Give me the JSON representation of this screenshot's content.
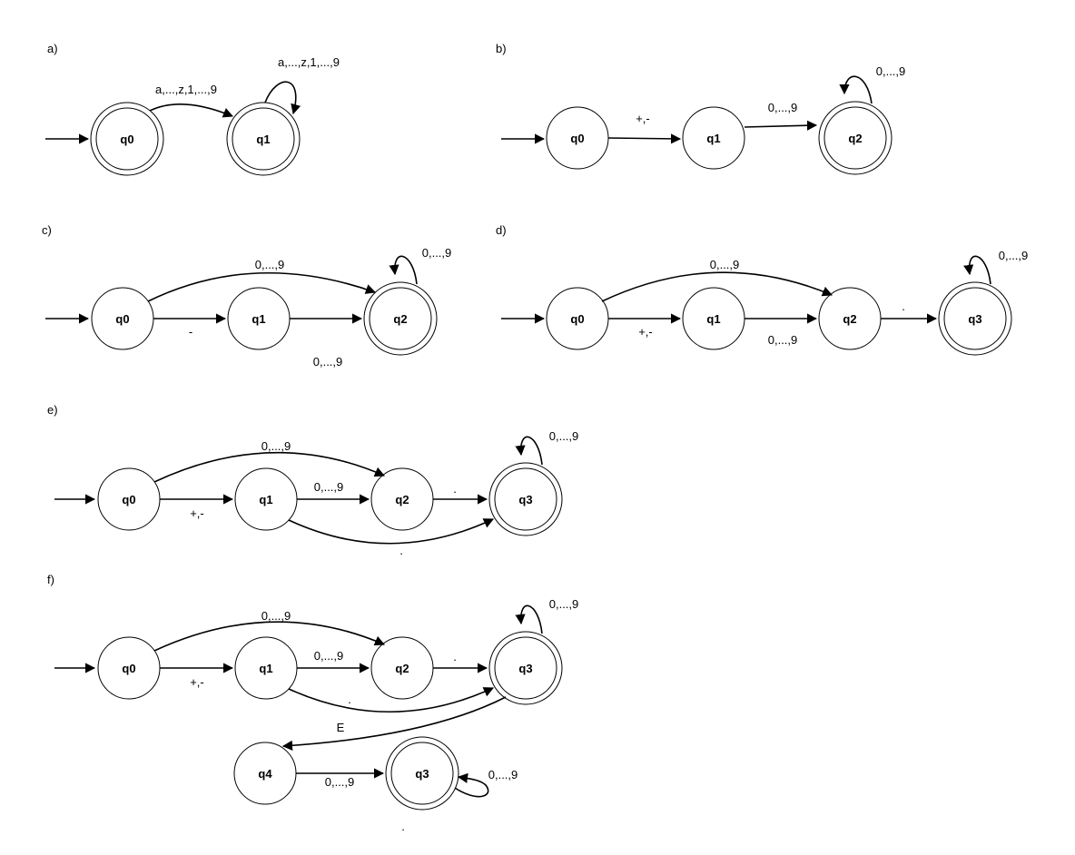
{
  "panels": {
    "a": {
      "label": "a)",
      "states": [
        "q0",
        "q1"
      ],
      "edges": {
        "q0_q1": "a,...,z,1,...,9",
        "q1_loop": "a,...,z,1,...,9"
      }
    },
    "b": {
      "label": "b)",
      "states": [
        "q0",
        "q1",
        "q2"
      ],
      "edges": {
        "q0_q1": "+,-",
        "q1_q2": "0,...,9",
        "q2_loop": "0,...,9"
      }
    },
    "c": {
      "label": "c)",
      "states": [
        "q0",
        "q1",
        "q2"
      ],
      "edges": {
        "q0_q2": "0,...,9",
        "q0_q1": "-",
        "q1_q2": "0,...,9",
        "q2_loop": "0,...,9"
      }
    },
    "d": {
      "label": "d)",
      "states": [
        "q0",
        "q1",
        "q2",
        "q3"
      ],
      "edges": {
        "q0_q2": "0,...,9",
        "q0_q1": "+,-",
        "q1_q2": "0,...,9",
        "q2_q3": ".",
        "q3_loop": "0,...,9"
      }
    },
    "e": {
      "label": "e)",
      "states": [
        "q0",
        "q1",
        "q2",
        "q3"
      ],
      "edges": {
        "q0_q2": "0,...,9",
        "q0_q1": "+,-",
        "q1_q2": "0,...,9",
        "q2_q3": ".",
        "q1_q3": ".",
        "q3_loop": "0,...,9"
      }
    },
    "f": {
      "label": "f)",
      "states": [
        "q0",
        "q1",
        "q2",
        "q3",
        "q4",
        "q3"
      ],
      "edges": {
        "q0_q2": "0,...,9",
        "q0_q1": "+,-",
        "q1_q2": "0,...,9",
        "q2_q3": ".",
        "q1_q3": ".",
        "q3_loop": "0,...,9",
        "q3_q4": "E",
        "q4_q5": "0,...,9",
        "q5_loop": "0,...,9"
      },
      "extra_mark": "."
    }
  }
}
